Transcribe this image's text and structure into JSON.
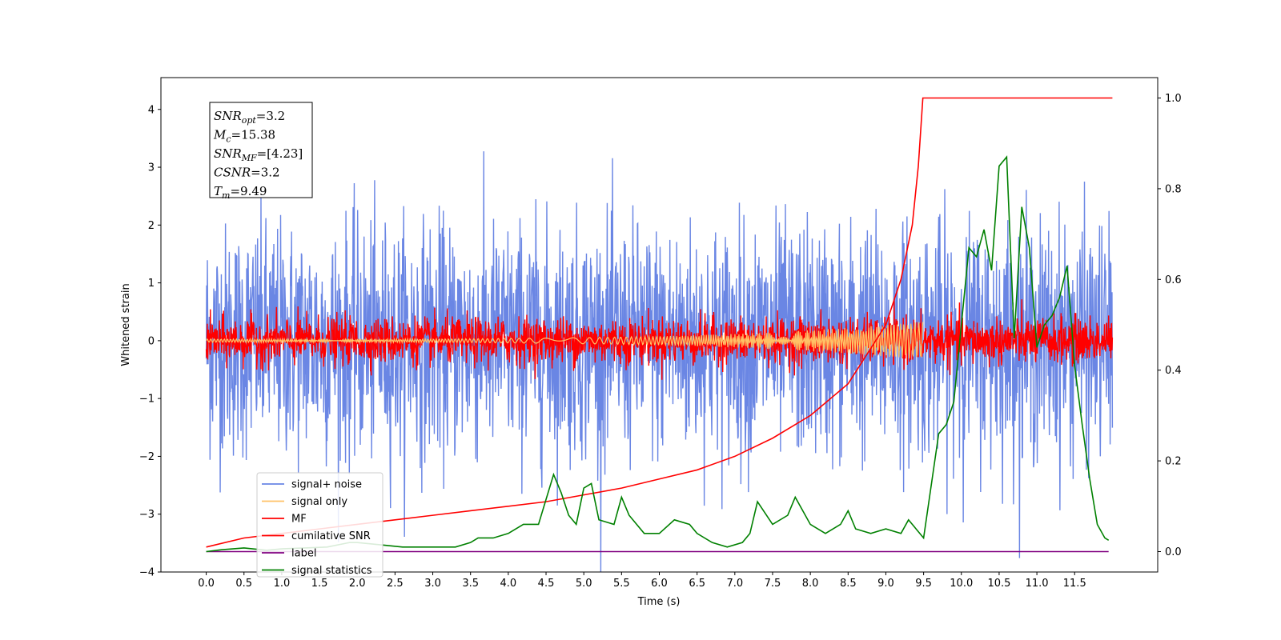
{
  "chart_data": {
    "type": "line",
    "xlabel": "Time (s)",
    "ylabel": "Whitened strain",
    "xlim": [
      -0.6,
      12.6
    ],
    "ylim": [
      -4.0,
      4.55
    ],
    "y2lim": [
      -0.045,
      1.045
    ],
    "xticks": [
      0.0,
      0.5,
      1.0,
      1.5,
      2.0,
      2.5,
      3.0,
      3.5,
      4.0,
      4.5,
      5.0,
      5.5,
      6.0,
      6.5,
      7.0,
      7.5,
      8.0,
      8.5,
      9.0,
      9.5,
      10.0,
      10.5,
      11.0,
      11.5
    ],
    "xtick_labels": [
      "0.0",
      "0.5",
      "1.0",
      "1.5",
      "2.0",
      "2.5",
      "3.0",
      "3.5",
      "4.0",
      "4.5",
      "5.0",
      "5.5",
      "6.0",
      "6.5",
      "7.0",
      "7.5",
      "8.0",
      "8.5",
      "9.0",
      "9.5",
      "10.0",
      "10.5",
      "11.0",
      "11.5"
    ],
    "yticks": [
      -4,
      -3,
      -2,
      -1,
      0,
      1,
      2,
      3,
      4
    ],
    "ytick_labels": [
      "−4",
      "−3",
      "−2",
      "−1",
      "0",
      "1",
      "2",
      "3",
      "4"
    ],
    "y2ticks": [
      0.0,
      0.2,
      0.4,
      0.6,
      0.8,
      1.0
    ],
    "y2tick_labels": [
      "0.0",
      "0.2",
      "0.4",
      "0.6",
      "0.8",
      "1.0"
    ],
    "grid": false,
    "legend_position": "lower-left",
    "series": [
      {
        "name": "signal+ noise",
        "axis": "left",
        "color": "#6a86e4",
        "kind": "noise",
        "x_range": [
          0.0,
          12.0
        ],
        "spread": 1.0,
        "max_abs": 4.2
      },
      {
        "name": "signal only",
        "axis": "left",
        "color": "#ffc266",
        "kind": "chirp",
        "x_range": [
          0.0,
          9.49
        ],
        "amplitude_max": 0.3
      },
      {
        "name": "MF",
        "axis": "left",
        "color": "#ff0000",
        "kind": "noise",
        "x_range": [
          0.0,
          12.0
        ],
        "spread": 0.2,
        "max_abs": 0.8
      },
      {
        "name": "cumilative SNR",
        "axis": "right",
        "color": "#ff0000",
        "x": [
          0.0,
          0.5,
          1.0,
          1.5,
          2.0,
          2.5,
          3.0,
          3.5,
          4.0,
          4.5,
          5.0,
          5.5,
          6.0,
          6.5,
          7.0,
          7.5,
          8.0,
          8.5,
          9.0,
          9.2,
          9.35,
          9.43,
          9.49,
          12.0
        ],
        "y": [
          0.01,
          0.03,
          0.04,
          0.05,
          0.06,
          0.07,
          0.08,
          0.09,
          0.1,
          0.11,
          0.125,
          0.14,
          0.16,
          0.18,
          0.21,
          0.25,
          0.3,
          0.37,
          0.5,
          0.6,
          0.72,
          0.85,
          1.0,
          1.0
        ]
      },
      {
        "name": "label",
        "axis": "right",
        "color": "#800080",
        "x": [
          0.0,
          11.95
        ],
        "y": [
          0.0,
          0.0
        ]
      },
      {
        "name": "signal statistics",
        "axis": "right",
        "color": "#008000",
        "x": [
          0.0,
          0.2,
          0.5,
          0.8,
          1.0,
          1.3,
          1.6,
          1.9,
          2.0,
          2.3,
          2.6,
          2.9,
          3.1,
          3.3,
          3.5,
          3.6,
          3.8,
          4.0,
          4.2,
          4.4,
          4.6,
          4.7,
          4.8,
          4.9,
          5.0,
          5.1,
          5.2,
          5.4,
          5.5,
          5.6,
          5.8,
          6.0,
          6.2,
          6.4,
          6.5,
          6.7,
          6.9,
          7.1,
          7.2,
          7.3,
          7.5,
          7.7,
          7.8,
          8.0,
          8.2,
          8.4,
          8.5,
          8.6,
          8.8,
          9.0,
          9.2,
          9.3,
          9.5,
          9.7,
          9.8,
          9.9,
          10.1,
          10.2,
          10.3,
          10.4,
          10.5,
          10.6,
          10.7,
          10.8,
          10.9,
          11.0,
          11.1,
          11.2,
          11.3,
          11.4,
          11.5,
          11.6,
          11.7,
          11.8,
          11.9,
          11.95
        ],
        "y": [
          0.0,
          0.004,
          0.008,
          0.003,
          0.006,
          0.008,
          0.01,
          0.02,
          0.02,
          0.015,
          0.01,
          0.01,
          0.01,
          0.01,
          0.02,
          0.03,
          0.03,
          0.04,
          0.06,
          0.06,
          0.17,
          0.13,
          0.08,
          0.06,
          0.14,
          0.15,
          0.07,
          0.06,
          0.12,
          0.08,
          0.04,
          0.04,
          0.07,
          0.06,
          0.04,
          0.02,
          0.01,
          0.02,
          0.04,
          0.11,
          0.06,
          0.08,
          0.12,
          0.06,
          0.04,
          0.06,
          0.09,
          0.05,
          0.04,
          0.05,
          0.04,
          0.07,
          0.03,
          0.26,
          0.28,
          0.33,
          0.67,
          0.65,
          0.71,
          0.62,
          0.85,
          0.87,
          0.47,
          0.76,
          0.67,
          0.45,
          0.5,
          0.52,
          0.56,
          0.63,
          0.41,
          0.28,
          0.16,
          0.06,
          0.03,
          0.025
        ]
      }
    ],
    "annotation_box": {
      "lines": [
        {
          "sym": "SNR",
          "sub": "opt",
          "value": "=3.2"
        },
        {
          "sym": "M",
          "sub": "c",
          "value": "=15.38"
        },
        {
          "sym": "SNR",
          "sub": "MF",
          "value": "=[4.23]"
        },
        {
          "sym": "CSNR",
          "sub": "",
          "value": "=3.2"
        },
        {
          "sym": "T",
          "sub": "m",
          "value": "=9.49"
        }
      ]
    }
  }
}
